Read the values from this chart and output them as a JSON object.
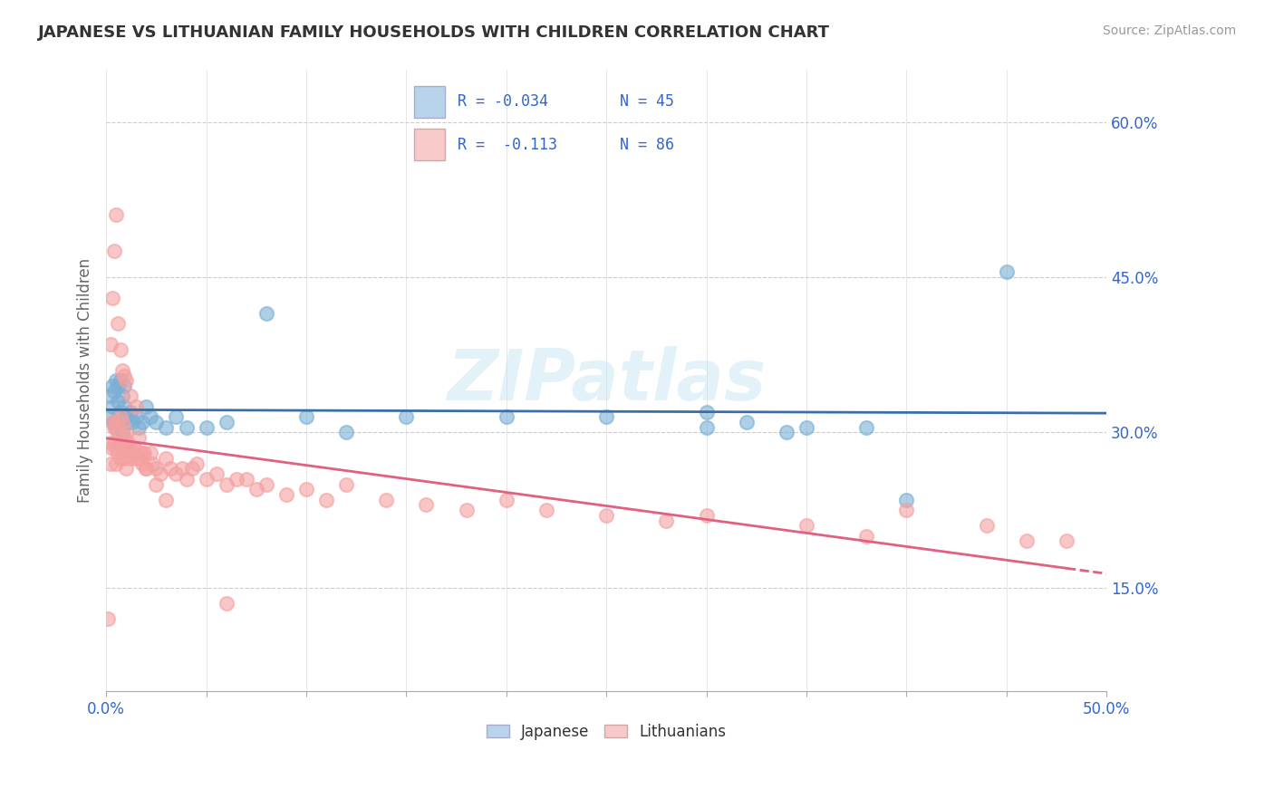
{
  "title": "JAPANESE VS LITHUANIAN FAMILY HOUSEHOLDS WITH CHILDREN CORRELATION CHART",
  "source": "Source: ZipAtlas.com",
  "ylabel": "Family Households with Children",
  "xlim": [
    0.0,
    0.5
  ],
  "ylim": [
    0.05,
    0.65
  ],
  "xticks": [
    0.0,
    0.05,
    0.1,
    0.15,
    0.2,
    0.25,
    0.3,
    0.35,
    0.4,
    0.45,
    0.5
  ],
  "xticklabels": [
    "0.0%",
    "",
    "",
    "",
    "",
    "",
    "",
    "",
    "",
    "",
    "50.0%"
  ],
  "yticks": [
    0.15,
    0.3,
    0.45,
    0.6
  ],
  "yticklabels": [
    "15.0%",
    "30.0%",
    "45.0%",
    "60.0%"
  ],
  "japanese_color": "#7BAFD4",
  "lithuanian_color": "#F4A0A0",
  "japanese_color_light": "#B8D4EA",
  "lithuanian_color_light": "#F9C8C8",
  "line_color_japanese": "#3A6EA8",
  "line_color_lithuanian": "#E06080",
  "watermark": "ZIPatlas",
  "japanese_x": [
    0.001,
    0.002,
    0.003,
    0.003,
    0.004,
    0.004,
    0.005,
    0.005,
    0.006,
    0.006,
    0.007,
    0.007,
    0.008,
    0.008,
    0.009,
    0.009,
    0.01,
    0.011,
    0.012,
    0.013,
    0.015,
    0.016,
    0.018,
    0.02,
    0.022,
    0.025,
    0.03,
    0.035,
    0.04,
    0.05,
    0.06,
    0.08,
    0.1,
    0.12,
    0.15,
    0.2,
    0.25,
    0.3,
    0.35,
    0.38,
    0.3,
    0.32,
    0.34,
    0.4,
    0.45
  ],
  "japanese_y": [
    0.315,
    0.335,
    0.345,
    0.325,
    0.34,
    0.31,
    0.35,
    0.305,
    0.33,
    0.345,
    0.35,
    0.32,
    0.335,
    0.3,
    0.325,
    0.345,
    0.315,
    0.31,
    0.32,
    0.31,
    0.315,
    0.305,
    0.31,
    0.325,
    0.315,
    0.31,
    0.305,
    0.315,
    0.305,
    0.305,
    0.31,
    0.415,
    0.315,
    0.3,
    0.315,
    0.315,
    0.315,
    0.305,
    0.305,
    0.305,
    0.32,
    0.31,
    0.3,
    0.235,
    0.455
  ],
  "lithuanian_x": [
    0.001,
    0.002,
    0.002,
    0.003,
    0.003,
    0.004,
    0.004,
    0.005,
    0.005,
    0.005,
    0.006,
    0.006,
    0.007,
    0.007,
    0.007,
    0.008,
    0.008,
    0.009,
    0.009,
    0.01,
    0.01,
    0.01,
    0.011,
    0.012,
    0.012,
    0.013,
    0.014,
    0.015,
    0.016,
    0.016,
    0.017,
    0.018,
    0.019,
    0.02,
    0.022,
    0.023,
    0.025,
    0.027,
    0.03,
    0.032,
    0.035,
    0.038,
    0.04,
    0.043,
    0.045,
    0.05,
    0.055,
    0.06,
    0.065,
    0.07,
    0.075,
    0.08,
    0.09,
    0.1,
    0.11,
    0.12,
    0.14,
    0.16,
    0.18,
    0.2,
    0.22,
    0.25,
    0.28,
    0.3,
    0.35,
    0.38,
    0.4,
    0.44,
    0.46,
    0.48,
    0.002,
    0.003,
    0.004,
    0.005,
    0.006,
    0.007,
    0.008,
    0.009,
    0.01,
    0.012,
    0.015,
    0.018,
    0.02,
    0.025,
    0.03,
    0.06
  ],
  "lithuanian_y": [
    0.12,
    0.29,
    0.27,
    0.31,
    0.285,
    0.305,
    0.29,
    0.285,
    0.31,
    0.27,
    0.3,
    0.28,
    0.315,
    0.29,
    0.275,
    0.285,
    0.31,
    0.295,
    0.275,
    0.3,
    0.285,
    0.265,
    0.29,
    0.285,
    0.275,
    0.28,
    0.285,
    0.275,
    0.295,
    0.275,
    0.28,
    0.27,
    0.28,
    0.265,
    0.28,
    0.27,
    0.265,
    0.26,
    0.275,
    0.265,
    0.26,
    0.265,
    0.255,
    0.265,
    0.27,
    0.255,
    0.26,
    0.25,
    0.255,
    0.255,
    0.245,
    0.25,
    0.24,
    0.245,
    0.235,
    0.25,
    0.235,
    0.23,
    0.225,
    0.235,
    0.225,
    0.22,
    0.215,
    0.22,
    0.21,
    0.2,
    0.225,
    0.21,
    0.195,
    0.195,
    0.385,
    0.43,
    0.475,
    0.51,
    0.405,
    0.38,
    0.36,
    0.355,
    0.35,
    0.335,
    0.325,
    0.28,
    0.265,
    0.25,
    0.235,
    0.135
  ]
}
